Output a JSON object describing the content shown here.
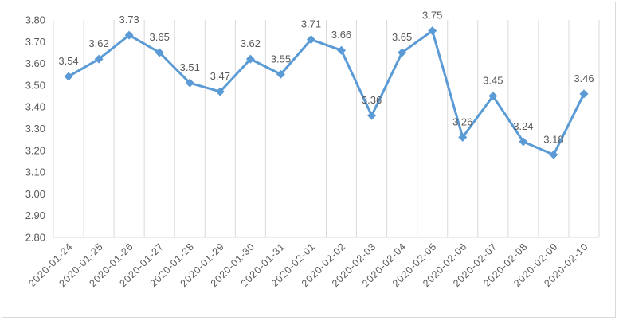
{
  "chart_data": {
    "type": "line",
    "title": "",
    "xlabel": "",
    "ylabel": "",
    "ylim": [
      2.8,
      3.8
    ],
    "y_ticks": [
      "2.80",
      "2.90",
      "3.00",
      "3.10",
      "3.20",
      "3.30",
      "3.40",
      "3.50",
      "3.60",
      "3.70",
      "3.80"
    ],
    "grid": "vertical",
    "legend": "none",
    "categories": [
      "2020-01-24",
      "2020-01-25",
      "2020-01-26",
      "2020-01-27",
      "2020-01-28",
      "2020-01-29",
      "2020-01-30",
      "2020-01-31",
      "2020-02-01",
      "2020-02-02",
      "2020-02-03",
      "2020-02-04",
      "2020-02-05",
      "2020-02-06",
      "2020-02-07",
      "2020-02-08",
      "2020-02-09",
      "2020-02-10"
    ],
    "series": [
      {
        "color": "#5b9bd5",
        "marker": "diamond",
        "values": [
          3.54,
          3.62,
          3.73,
          3.65,
          3.51,
          3.47,
          3.62,
          3.55,
          3.71,
          3.66,
          3.36,
          3.65,
          3.75,
          3.26,
          3.45,
          3.24,
          3.18,
          3.46
        ],
        "data_labels": [
          "3.54",
          "3.62",
          "3.73",
          "3.65",
          "3.51",
          "3.47",
          "3.62",
          "3.55",
          "3.71",
          "3.66",
          "3.36",
          "3.65",
          "3.75",
          "3.26",
          "3.45",
          "3.24",
          "3.18",
          "3.46"
        ]
      }
    ]
  }
}
